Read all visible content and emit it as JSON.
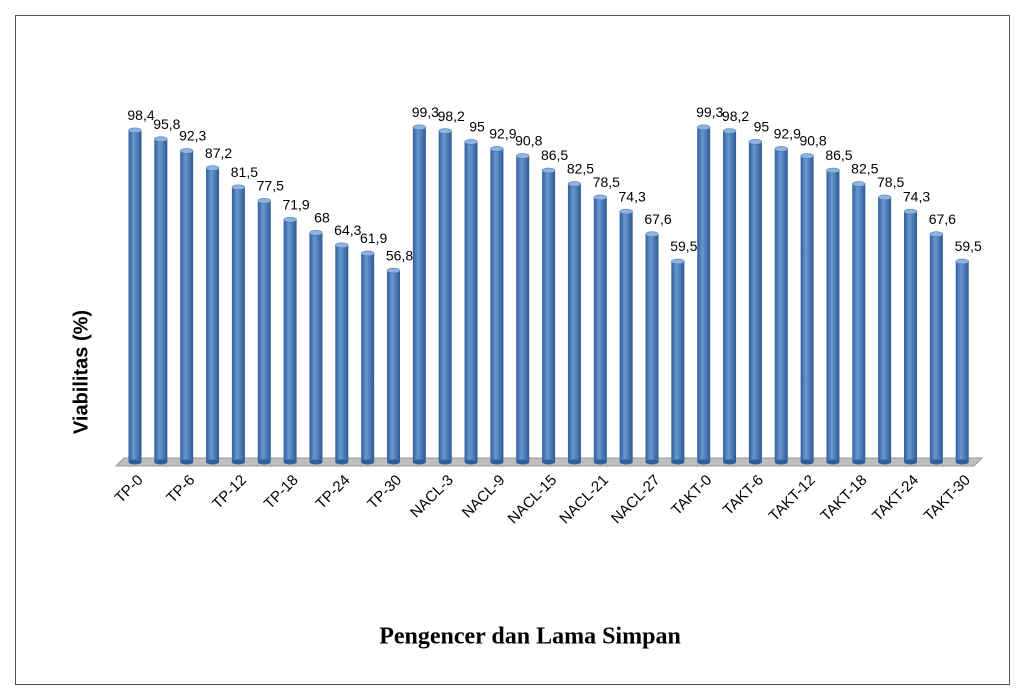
{
  "chart_data": {
    "type": "bar",
    "x_label": "Pengencer dan Lama Simpan",
    "y_label": "Viabilitas (%)",
    "categories": [
      "TP-0",
      null,
      "TP-6",
      null,
      "TP-12",
      null,
      "TP-18",
      null,
      "TP-24",
      null,
      "TP-30",
      null,
      "NACL-3",
      null,
      "NACL-9",
      null,
      "NACL-15",
      null,
      "NACL-21",
      null,
      "NACL-27",
      null,
      "TAKT-0",
      null,
      "TAKT-6",
      null,
      "TAKT-12",
      null,
      "TAKT-18",
      null,
      "TAKT-24",
      null,
      "TAKT-30"
    ],
    "values": [
      98.4,
      95.8,
      92.3,
      87.2,
      81.5,
      77.5,
      71.9,
      68,
      64.3,
      61.9,
      56.8,
      99.3,
      98.2,
      95,
      92.9,
      90.8,
      86.5,
      82.5,
      78.5,
      74.3,
      67.6,
      59.5,
      99.3,
      98.2,
      95,
      92.9,
      90.8,
      86.5,
      82.5,
      78.5,
      74.3,
      67.6,
      59.5
    ],
    "value_labels": [
      "98,4",
      "95,8",
      "92,3",
      "87,2",
      "81,5",
      "77,5",
      "71,9",
      "68",
      "64,3",
      "61,9",
      "56,8",
      "99,3",
      "98,2",
      "95",
      "92,9",
      "90,8",
      "86,5",
      "82,5",
      "78,5",
      "74,3",
      "67,6",
      "59,5",
      "99,3",
      "98,2",
      "95",
      "92,9",
      "90,8",
      "86,5",
      "82,5",
      "78,5",
      "74,3",
      "67,6",
      "59,5"
    ],
    "color": "#4f81bd",
    "ylim": [
      0,
      100
    ]
  }
}
